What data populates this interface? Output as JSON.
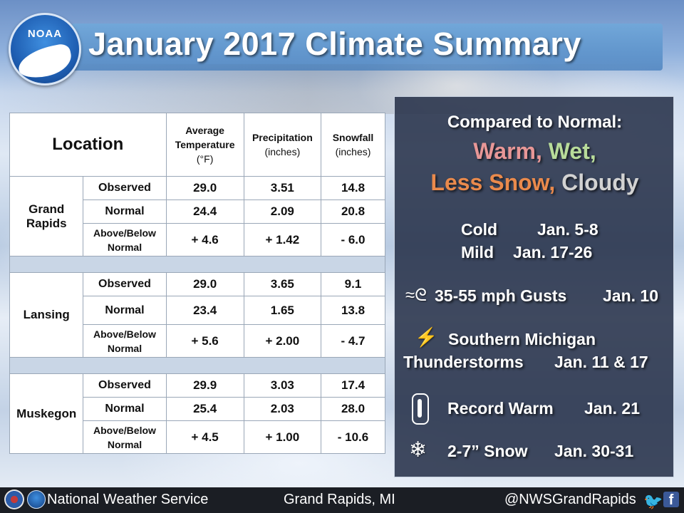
{
  "header": {
    "title": "January 2017 Climate Summary",
    "logo_text": "NOAA"
  },
  "table": {
    "location_header": "Location",
    "columns": [
      {
        "name": "Average Temperature",
        "unit": "(°F)"
      },
      {
        "name": "Precipitation",
        "unit": "(inches)"
      },
      {
        "name": "Snowfall",
        "unit": "(inches)"
      }
    ],
    "row_labels": {
      "observed": "Observed",
      "normal": "Normal",
      "diff": "Above/Below Normal"
    },
    "locations": [
      {
        "name": "Grand Rapids",
        "observed": [
          "29.0",
          "3.51",
          "14.8"
        ],
        "normal": [
          "24.4",
          "2.09",
          "20.8"
        ],
        "diff": [
          "+ 4.6",
          "+ 1.42",
          "- 6.0"
        ]
      },
      {
        "name": "Lansing",
        "observed": [
          "29.0",
          "3.65",
          "9.1"
        ],
        "normal": [
          "23.4",
          "1.65",
          "13.8"
        ],
        "diff": [
          "+ 5.6",
          "+ 2.00",
          "- 4.7"
        ]
      },
      {
        "name": "Muskegon",
        "observed": [
          "29.9",
          "3.03",
          "17.4"
        ],
        "normal": [
          "25.4",
          "2.03",
          "28.0"
        ],
        "diff": [
          "+ 4.5",
          "+ 1.00",
          "- 10.6"
        ]
      }
    ]
  },
  "panel": {
    "compared": "Compared to Normal:",
    "warm": "Warm,",
    "wet": "Wet,",
    "less_snow": "Less Snow,",
    "cloudy": "Cloudy",
    "cold_label": "Cold",
    "cold_dates": "Jan. 5-8",
    "mild_label": "Mild",
    "mild_dates": "Jan. 17-26",
    "gusts": "35-55 mph Gusts",
    "gusts_date": "Jan. 10",
    "storms1": "Southern Michigan",
    "storms2": "Thunderstorms",
    "storms_dates": "Jan. 11 & 17",
    "record": "Record Warm",
    "record_date": "Jan. 21",
    "snow": "2-7” Snow",
    "snow_dates": "Jan. 30-31",
    "icons": [
      "wind-icon",
      "lightning-icon",
      "thermometer-icon",
      "snowflake-icon"
    ]
  },
  "footer": {
    "org": "National Weather Service",
    "office": "Grand Rapids, MI",
    "handle": "@NWSGrandRapids"
  },
  "colors": {
    "above_temp": "#c00000",
    "above_precip": "#1e7a1e",
    "below_snow": "#9a4e10"
  }
}
